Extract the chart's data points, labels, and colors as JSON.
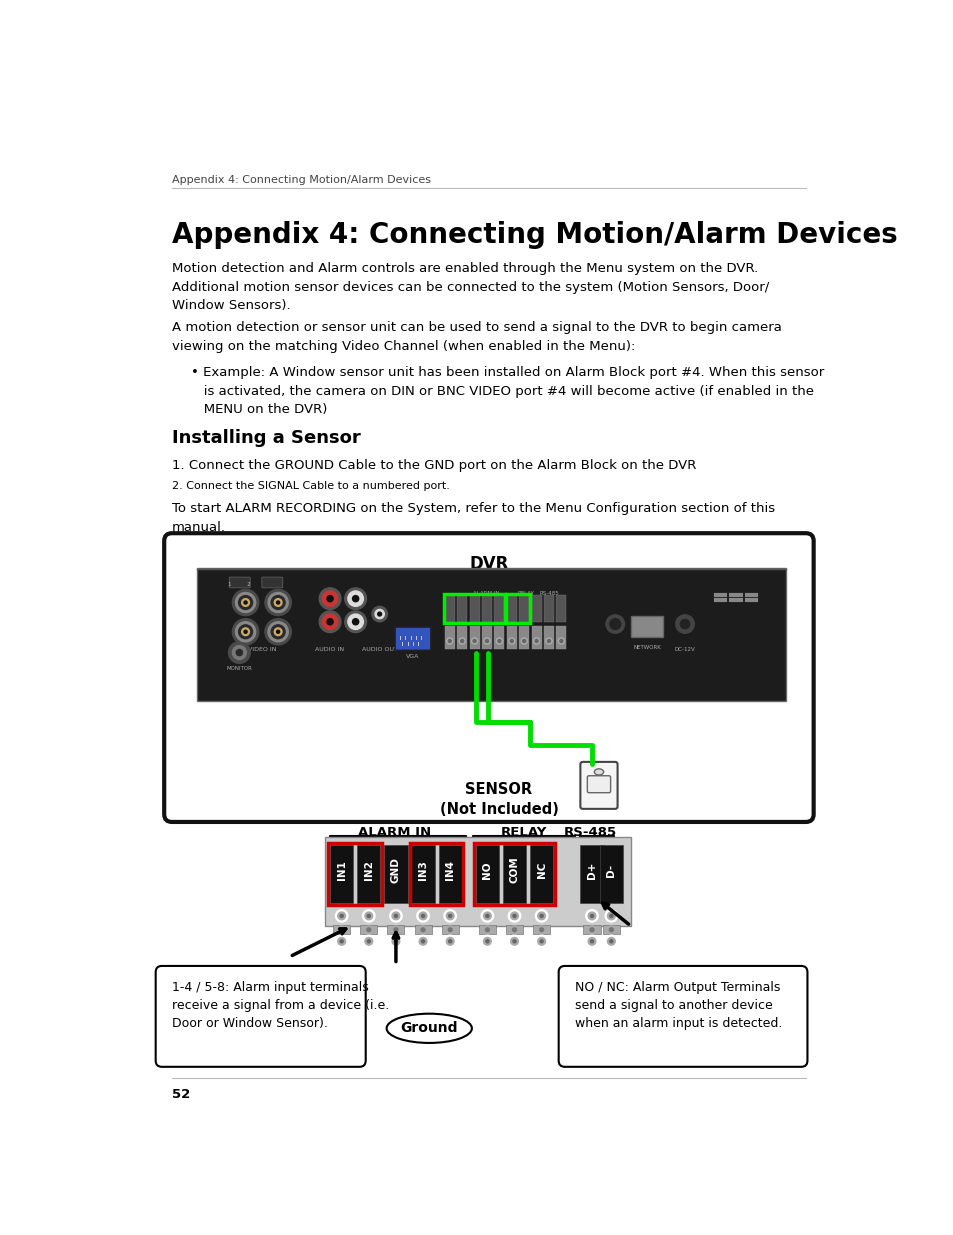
{
  "page_header": "Appendix 4: Connecting Motion/Alarm Devices",
  "title": "Appendix 4: Connecting Motion/Alarm Devices",
  "body_text_1": "Motion detection and Alarm controls are enabled through the Menu system on the DVR.\nAdditional motion sensor devices can be connected to the system (Motion Sensors, Door/\nWindow Sensors).",
  "body_text_2": "A motion detection or sensor unit can be used to send a signal to the DVR to begin camera\nviewing on the matching Video Channel (when enabled in the Menu):",
  "bullet_text": "• Example: A Window sensor unit has been installed on Alarm Block port #4. When this sensor\n   is activated, the camera on DIN or BNC VIDEO port #4 will become active (if enabled in the\n   MENU on the DVR)",
  "subtitle": "Installing a Sensor",
  "step1": "1. Connect the GROUND Cable to the GND port on the Alarm Block on the DVR",
  "step2": "2. Connect the SIGNAL Cable to a numbered port.",
  "body_text_3": "To start ALARM RECORDING on the System, refer to the Menu Configuration section of this\nmanual.",
  "dvr_label": "DVR",
  "sensor_label": "SENSOR\n(Not Included)",
  "alarm_in_label": "ALARM IN",
  "relay_label": "RELAY",
  "rs485_label": "RS-485",
  "left_box_label": "1-4 / 5-8: Alarm input terminals\nreceive a signal from a device (i.e.\nDoor or Window Sensor).",
  "ground_label": "Ground",
  "right_box_label": "NO / NC: Alarm Output Terminals\nsend a signal to another device\nwhen an alarm input is detected.",
  "page_number": "52",
  "bg_color": "#ffffff",
  "text_color": "#000000",
  "green_cable_color": "#00dd00",
  "red_box_color": "#cc0000"
}
